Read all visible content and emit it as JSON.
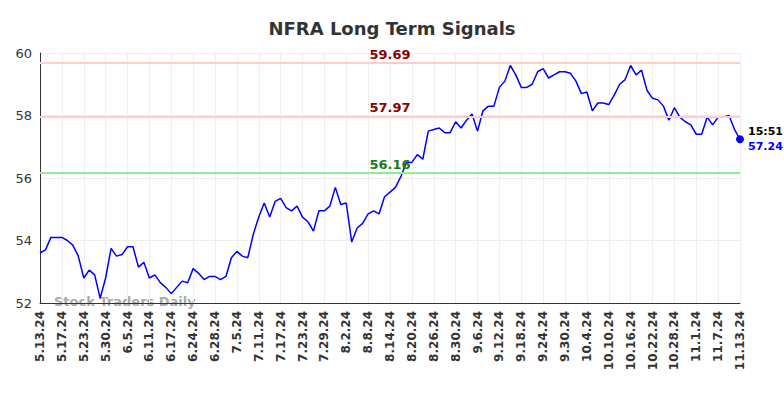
{
  "chart_data": {
    "type": "line",
    "title": "NFRA Long Term Signals",
    "categories": [
      "5.13.24",
      null,
      null,
      null,
      "5.17.24",
      null,
      null,
      null,
      "5.23.24",
      null,
      null,
      null,
      "5.30.24",
      null,
      null,
      null,
      "6.5.24",
      null,
      null,
      null,
      "6.11.24",
      null,
      null,
      null,
      "6.17.24",
      null,
      null,
      null,
      "6.24.24",
      null,
      null,
      null,
      "6.28.24",
      null,
      null,
      null,
      "7.5.24",
      null,
      null,
      null,
      "7.11.24",
      null,
      null,
      null,
      "7.17.24",
      null,
      null,
      null,
      "7.23.24",
      null,
      null,
      null,
      "7.29.24",
      null,
      null,
      null,
      "8.2.24",
      null,
      null,
      null,
      "8.8.24",
      null,
      null,
      null,
      "8.14.24",
      null,
      null,
      null,
      "8.20.24",
      null,
      null,
      null,
      "8.26.24",
      null,
      null,
      null,
      "8.30.24",
      null,
      null,
      null,
      "9.6.24",
      null,
      null,
      null,
      "9.12.24",
      null,
      null,
      null,
      "9.18.24",
      null,
      null,
      null,
      "9.24.24",
      null,
      null,
      null,
      "9.30.24",
      null,
      null,
      null,
      "10.4.24",
      null,
      null,
      null,
      "10.10.24",
      null,
      null,
      null,
      "10.16.24",
      null,
      null,
      null,
      "10.22.24",
      null,
      null,
      null,
      "10.28.24",
      null,
      null,
      null,
      "11.1.24",
      null,
      null,
      null,
      "11.7.24",
      null,
      null,
      null,
      "11.13.24"
    ],
    "values": [
      53.6,
      53.7,
      54.1,
      54.1,
      54.1,
      54.0,
      53.85,
      53.5,
      52.8,
      53.05,
      52.9,
      52.15,
      52.8,
      53.75,
      53.5,
      53.55,
      53.8,
      53.8,
      53.15,
      53.3,
      52.8,
      52.9,
      52.65,
      52.5,
      52.3,
      52.5,
      52.7,
      52.65,
      53.1,
      52.95,
      52.75,
      52.85,
      52.85,
      52.75,
      52.85,
      53.45,
      53.65,
      53.5,
      53.45,
      54.2,
      54.75,
      55.2,
      54.75,
      55.25,
      55.35,
      55.05,
      54.95,
      55.1,
      54.75,
      54.6,
      54.3,
      54.95,
      54.95,
      55.1,
      55.7,
      55.15,
      55.2,
      53.95,
      54.4,
      54.55,
      54.85,
      54.95,
      54.85,
      55.4,
      55.55,
      55.7,
      56.05,
      56.5,
      56.5,
      56.75,
      56.6,
      57.5,
      57.55,
      57.6,
      57.45,
      57.45,
      57.8,
      57.6,
      57.85,
      58.05,
      57.5,
      58.15,
      58.3,
      58.3,
      58.9,
      59.1,
      59.6,
      59.3,
      58.9,
      58.9,
      59.0,
      59.4,
      59.5,
      59.2,
      59.3,
      59.4,
      59.4,
      59.35,
      59.1,
      58.7,
      58.75,
      58.15,
      58.4,
      58.4,
      58.35,
      58.65,
      59.0,
      59.15,
      59.6,
      59.3,
      59.45,
      58.8,
      58.55,
      58.5,
      58.3,
      57.85,
      58.25,
      57.95,
      57.8,
      57.7,
      57.4,
      57.4,
      57.95,
      57.7,
      57.95,
      57.95,
      58.0,
      57.55,
      57.24
    ],
    "color": "#0000ff",
    "ylim": [
      52,
      60
    ],
    "yticks": [
      52,
      54,
      56,
      58,
      60
    ],
    "grid": true,
    "reference_lines": [
      {
        "value": 59.69,
        "label": "59.69",
        "color": "#8b0000"
      },
      {
        "value": 57.97,
        "label": "57.97",
        "color": "#8b0000"
      },
      {
        "value": 56.16,
        "label": "56.16",
        "color": "#1a7a1a"
      }
    ],
    "end_time": "15:51",
    "end_value_label": "57.24",
    "watermark": "Stock Traders Daily"
  }
}
